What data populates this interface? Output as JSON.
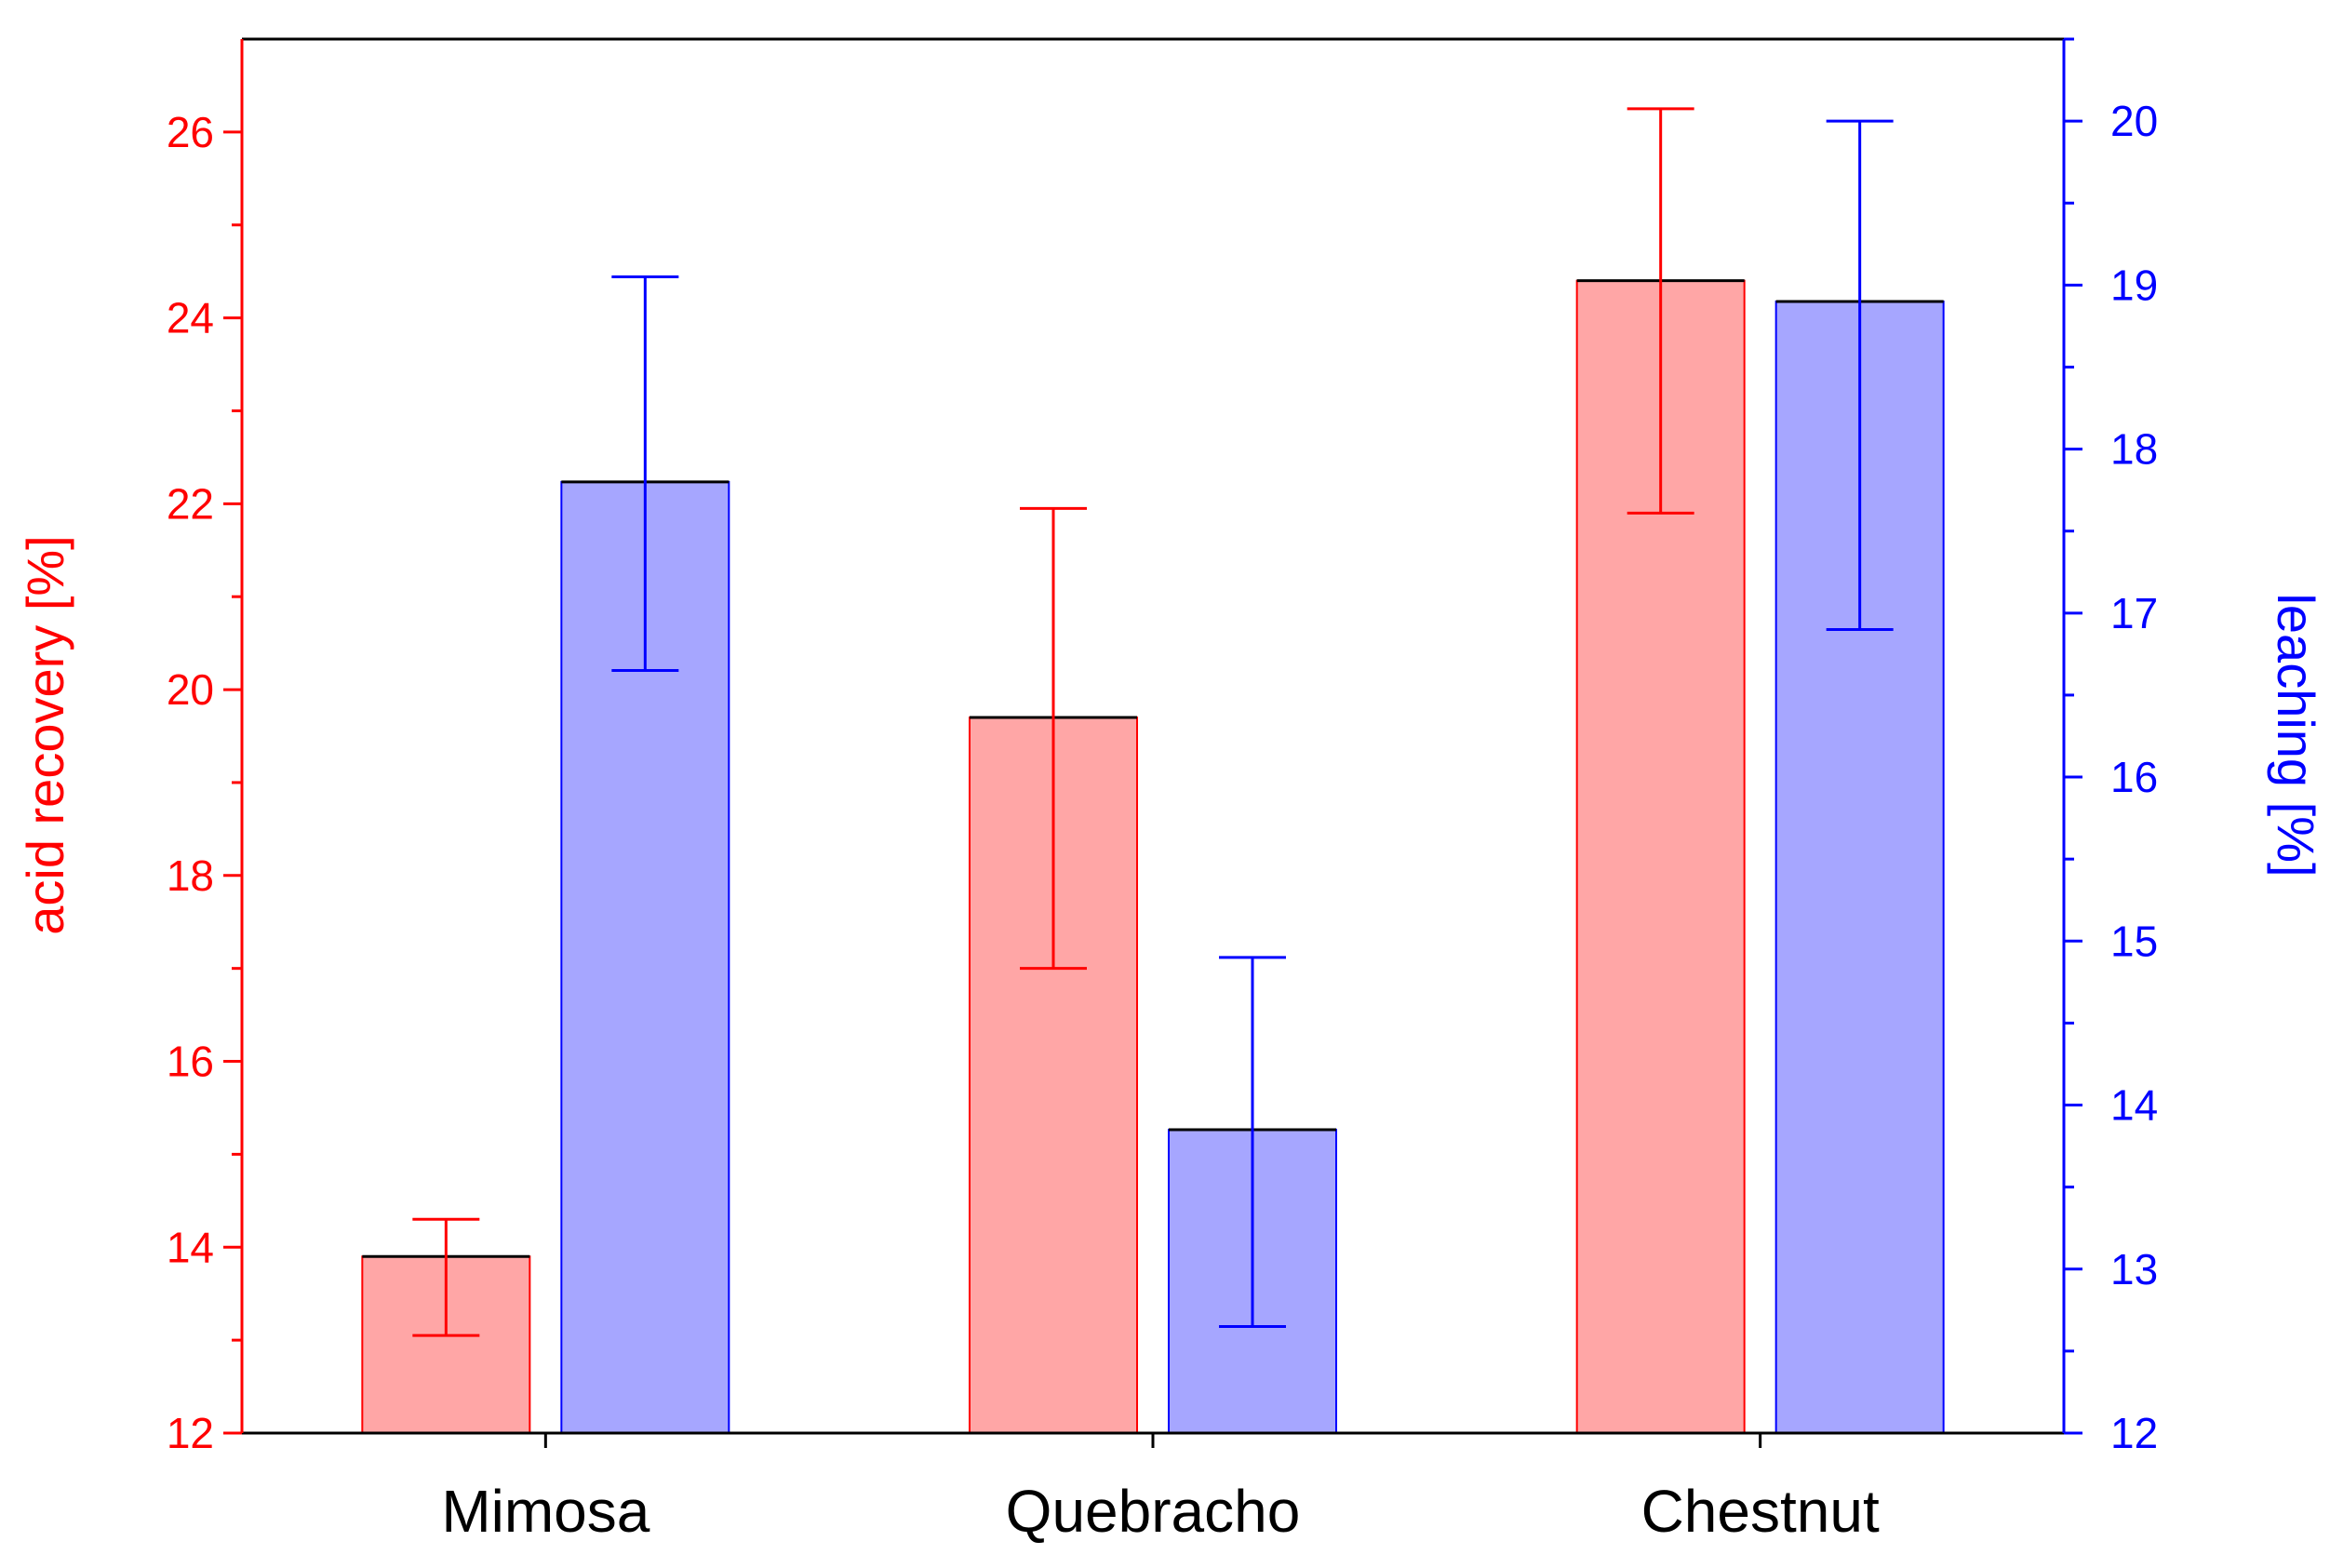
{
  "chart_data": {
    "type": "bar",
    "categories": [
      "Mimosa",
      "Quebracho",
      "Chestnut"
    ],
    "series": [
      {
        "name": "acid recovery",
        "axis": "left",
        "values": [
          13.9,
          19.7,
          24.4
        ],
        "error_low": [
          13.05,
          17.0,
          21.9
        ],
        "error_high": [
          14.3,
          21.95,
          26.25
        ],
        "color": "#ff0000",
        "fill": "#ffa6a6"
      },
      {
        "name": "leaching",
        "axis": "right",
        "values": [
          17.8,
          13.85,
          18.9
        ],
        "error_low": [
          16.65,
          12.65,
          16.9
        ],
        "error_high": [
          19.05,
          14.9,
          20.0
        ],
        "color": "#0000ff",
        "fill": "#a6a6ff"
      }
    ],
    "y_left": {
      "label": "acid recovery [%]",
      "ylim": [
        12,
        27
      ],
      "ticks": [
        "12",
        "14",
        "16",
        "18",
        "20",
        "22",
        "24",
        "26"
      ],
      "tick_values": [
        12,
        14,
        16,
        18,
        20,
        22,
        24,
        26
      ],
      "color": "#ff0000"
    },
    "y_right": {
      "label": "leaching [%]",
      "ylim": [
        12,
        20.5
      ],
      "ticks": [
        "12",
        "13",
        "14",
        "15",
        "16",
        "17",
        "18",
        "19",
        "20"
      ],
      "tick_values": [
        12,
        13,
        14,
        15,
        16,
        17,
        18,
        19,
        20
      ],
      "color": "#0000ff"
    },
    "title": "",
    "xlabel": "",
    "grid": false
  }
}
